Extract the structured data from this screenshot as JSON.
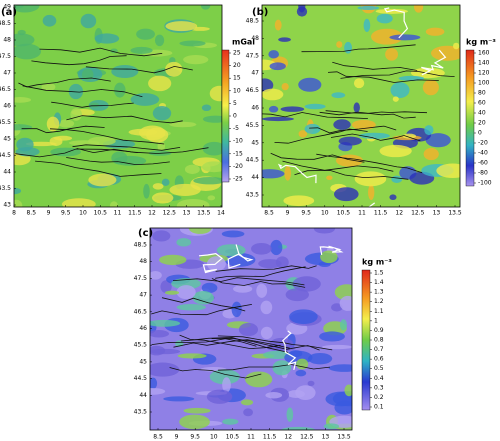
{
  "panels": [
    {
      "label": "(a)",
      "unit": "mGal",
      "xticks": [
        "8",
        "8.5",
        "9",
        "9.5",
        "10",
        "10.5",
        "11",
        "11.5",
        "12",
        "12.5",
        "13",
        "13.5",
        "14"
      ],
      "yticks": [
        "49",
        "48.5",
        "48",
        "47.5",
        "47",
        "46.5",
        "46",
        "45.5",
        "45",
        "44.5",
        "44",
        "43.5",
        "43"
      ],
      "colorbar_ticks": [
        "25",
        "20",
        "15",
        "10",
        "5",
        "0",
        "-5",
        "-10",
        "-15",
        "-20",
        "-25"
      ]
    },
    {
      "label": "(b)",
      "unit": "kg m⁻³",
      "xticks": [
        "8.5",
        "9",
        "9.5",
        "10",
        "10.5",
        "11",
        "11.5",
        "12",
        "12.5",
        "13",
        "13.5"
      ],
      "yticks": [
        "48.5",
        "48",
        "47.5",
        "47",
        "46.5",
        "46",
        "45.5",
        "45",
        "44.5",
        "44",
        "43.5"
      ],
      "colorbar_ticks": [
        "160",
        "140",
        "120",
        "100",
        "80",
        "60",
        "40",
        "20",
        "0",
        "-20",
        "-40",
        "-60",
        "-80",
        "-100"
      ]
    },
    {
      "label": "(c)",
      "unit": "kg m⁻³",
      "xticks": [
        "8.5",
        "9",
        "9.5",
        "10",
        "10.5",
        "11",
        "11.5",
        "12",
        "12.5",
        "13",
        "13.5"
      ],
      "yticks": [
        "48.5",
        "48",
        "47.5",
        "47",
        "46.5",
        "46",
        "45.5",
        "45",
        "44.5",
        "44",
        "43.5"
      ],
      "colorbar_ticks": [
        "1.5",
        "1.4",
        "1.3",
        "1.2",
        "1.1",
        "1",
        "0.9",
        "0.8",
        "0.7",
        "0.6",
        "0.5",
        "0.4",
        "0.3",
        "0.2",
        "0.1"
      ]
    }
  ]
}
